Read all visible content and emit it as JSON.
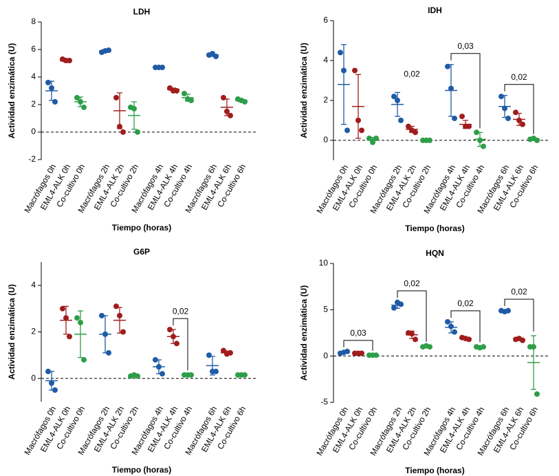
{
  "chart_data": [
    {
      "type": "dot",
      "title": "LDH",
      "x_label": "Tiempo (horas)",
      "y_label": "Actividad enzimática (U)",
      "categories": [
        "Macrófagos 0h",
        "EML4-ALK 0h",
        "Co-cultivo 0h",
        "Macrófagos 2h",
        "EML4-ALK 2h",
        "Co-cultivo 2h",
        "Macrófagos 4h",
        "EML4-ALK 4h",
        "Co-cultivo 4h",
        "Macrófagos 6h",
        "EML4-ALK 6h",
        "Co-cultivo 6h"
      ],
      "colors": [
        "#1f5ba6",
        "#a11c1c",
        "#2e9e48"
      ],
      "points": [
        [
          3.6,
          3.2,
          2.2
        ],
        [
          5.3,
          5.2,
          5.2
        ],
        [
          2.5,
          2.2,
          1.8
        ],
        [
          5.8,
          5.9,
          5.95
        ],
        [
          2.5,
          0.4,
          0.0
        ],
        [
          1.8,
          1.7,
          0.0
        ],
        [
          4.7,
          4.7,
          4.7
        ],
        [
          3.2,
          3.0,
          3.0
        ],
        [
          2.8,
          2.4,
          2.3
        ],
        [
          5.6,
          5.7,
          5.5
        ],
        [
          2.5,
          1.5,
          1.2
        ],
        [
          2.4,
          2.3,
          2.2
        ]
      ],
      "means": [
        3.0,
        5.2,
        2.2,
        5.9,
        1.55,
        1.2,
        4.7,
        3.1,
        2.5,
        5.6,
        1.8,
        2.3
      ],
      "sd": [
        0.7,
        0.1,
        0.35,
        0.1,
        1.3,
        1.0,
        0.05,
        0.1,
        0.25,
        0.1,
        0.6,
        0.1
      ],
      "ylim": [
        -2,
        8
      ],
      "yticks": [
        -2,
        0,
        2,
        4,
        6,
        8
      ],
      "zero_line": true,
      "annotations": []
    },
    {
      "type": "dot",
      "title": "IDH",
      "x_label": "Tiempo (horas)",
      "y_label": "Actividad enzimática (U)",
      "categories": [
        "Macrófagos 0h",
        "EML4-ALK 0h",
        "Co-cultivo 0h",
        "Macrófagos 2h",
        "EML4-ALK 2h",
        "Co-cultivo 2h",
        "Macrófagos 4h",
        "EML4-ALK 4h",
        "Co-cultivo 4h",
        "Macrófagos 6h",
        "EML4-ALK 6h",
        "Co-cultivo 6h"
      ],
      "colors": [
        "#1f5ba6",
        "#a11c1c",
        "#2e9e48"
      ],
      "points": [
        [
          4.4,
          3.5,
          0.5
        ],
        [
          3.5,
          1.0,
          0.5
        ],
        [
          0.1,
          -0.1,
          0.1
        ],
        [
          2.2,
          2.0,
          1.0
        ],
        [
          0.7,
          0.5,
          0.4
        ],
        [
          0.0,
          0.0,
          0.0
        ],
        [
          3.7,
          2.6,
          1.1
        ],
        [
          1.2,
          0.7,
          0.7
        ],
        [
          0.4,
          0.0,
          -0.3
        ],
        [
          2.2,
          1.6,
          1.1
        ],
        [
          1.4,
          1.0,
          0.8
        ],
        [
          0.05,
          0.1,
          0.0
        ]
      ],
      "means": [
        2.8,
        1.7,
        0.05,
        1.8,
        0.55,
        0.0,
        2.5,
        0.8,
        0.05,
        1.7,
        1.05,
        0.05
      ],
      "sd": [
        2.0,
        1.6,
        0.1,
        0.6,
        0.15,
        0.02,
        1.3,
        0.2,
        0.35,
        0.55,
        0.3,
        0.05
      ],
      "ylim": [
        -1,
        6
      ],
      "yticks": [
        0,
        2,
        4,
        6
      ],
      "zero_line": true,
      "annotations": [
        {
          "text": "0,02",
          "from": 3,
          "to": 5,
          "bracket": false
        },
        {
          "text": "0,03",
          "from": 6,
          "to": 8,
          "bracket": true
        },
        {
          "text": "0,02",
          "from": 9,
          "to": 11,
          "bracket": true
        }
      ]
    },
    {
      "type": "dot",
      "title": "G6P",
      "x_label": "Tiempo (horas)",
      "y_label": "Actividad enzimática (U)",
      "categories": [
        "Macrófagos 0h",
        "EML4-ALK 0h",
        "Co-cultivo 0h",
        "Macrófagos 2h",
        "EML4-ALK 2h",
        "Co-cultivo 2h",
        "Macrófagos 4h",
        "EML4-ALK 4h",
        "Co-cultivo 4h",
        "Macrófagos 6h",
        "EML4-ALK 6h",
        "Co-cultivo 6h"
      ],
      "colors": [
        "#1f5ba6",
        "#a11c1c",
        "#2e9e48"
      ],
      "points": [
        [
          0.3,
          -0.2,
          -0.5
        ],
        [
          3.0,
          2.6,
          1.8
        ],
        [
          2.6,
          2.4,
          0.8
        ],
        [
          2.7,
          1.9,
          1.1
        ],
        [
          3.1,
          2.7,
          2.0
        ],
        [
          0.1,
          0.15,
          0.1
        ],
        [
          0.8,
          0.5,
          0.2
        ],
        [
          2.1,
          1.8,
          1.5
        ],
        [
          0.15,
          0.15,
          0.15
        ],
        [
          1.0,
          0.3,
          0.3
        ],
        [
          1.2,
          1.05,
          1.1
        ],
        [
          0.15,
          0.15,
          0.15
        ]
      ],
      "means": [
        -0.1,
        2.5,
        1.9,
        1.9,
        2.5,
        0.1,
        0.5,
        1.8,
        0.15,
        0.55,
        1.1,
        0.15
      ],
      "sd": [
        0.4,
        0.6,
        1.0,
        0.8,
        0.55,
        0.03,
        0.3,
        0.3,
        0.02,
        0.4,
        0.08,
        0.02
      ],
      "ylim": [
        -1,
        5
      ],
      "yticks": [
        0,
        2,
        4
      ],
      "zero_line": true,
      "annotations": [
        {
          "text": "0,02",
          "from": 7,
          "to": 8,
          "bracket": true
        }
      ]
    },
    {
      "type": "dot",
      "title": "HQN",
      "x_label": "Tiempo (horas)",
      "y_label": "Actividad enzimática (U)",
      "categories": [
        "Macrófagos 0h",
        "EML4-ALK 0h",
        "Co-cultivo 0h",
        "Macrófagos 2h",
        "EML4-ALK 2h",
        "Co-cultivo 2h",
        "Macrófagos 4h",
        "EML4-ALK 4h",
        "Co-cultivo 4h",
        "Macrófagos 6h",
        "EML4-ALK 6h",
        "Co-cultivo 6h"
      ],
      "colors": [
        "#1f5ba6",
        "#a11c1c",
        "#2e9e48"
      ],
      "points": [
        [
          0.3,
          0.4,
          0.5
        ],
        [
          0.3,
          0.3,
          0.3
        ],
        [
          0.1,
          0.1,
          0.1
        ],
        [
          5.2,
          5.8,
          5.6
        ],
        [
          2.5,
          2.4,
          1.8
        ],
        [
          1.0,
          1.1,
          1.0
        ],
        [
          3.7,
          3.2,
          2.6
        ],
        [
          2.0,
          1.9,
          1.8
        ],
        [
          1.0,
          0.9,
          1.0
        ],
        [
          4.9,
          4.8,
          4.9
        ],
        [
          1.8,
          1.9,
          1.7
        ],
        [
          1.0,
          1.0,
          -4.1
        ]
      ],
      "means": [
        0.4,
        0.3,
        0.1,
        5.5,
        2.3,
        1.0,
        3.1,
        1.9,
        0.95,
        4.85,
        1.8,
        -0.7
      ],
      "sd": [
        0.1,
        0.05,
        0.02,
        0.35,
        0.4,
        0.1,
        0.6,
        0.1,
        0.1,
        0.1,
        0.1,
        2.9
      ],
      "ylim": [
        -5,
        10
      ],
      "yticks": [
        -5,
        0,
        5,
        10
      ],
      "zero_line": true,
      "annotations": [
        {
          "text": "0,03",
          "from": 0,
          "to": 2,
          "bracket": true
        },
        {
          "text": "0,02",
          "from": 3,
          "to": 5,
          "bracket": true
        },
        {
          "text": "0,02",
          "from": 6,
          "to": 8,
          "bracket": true
        },
        {
          "text": "0,02",
          "from": 9,
          "to": 11,
          "bracket": true
        }
      ]
    }
  ]
}
